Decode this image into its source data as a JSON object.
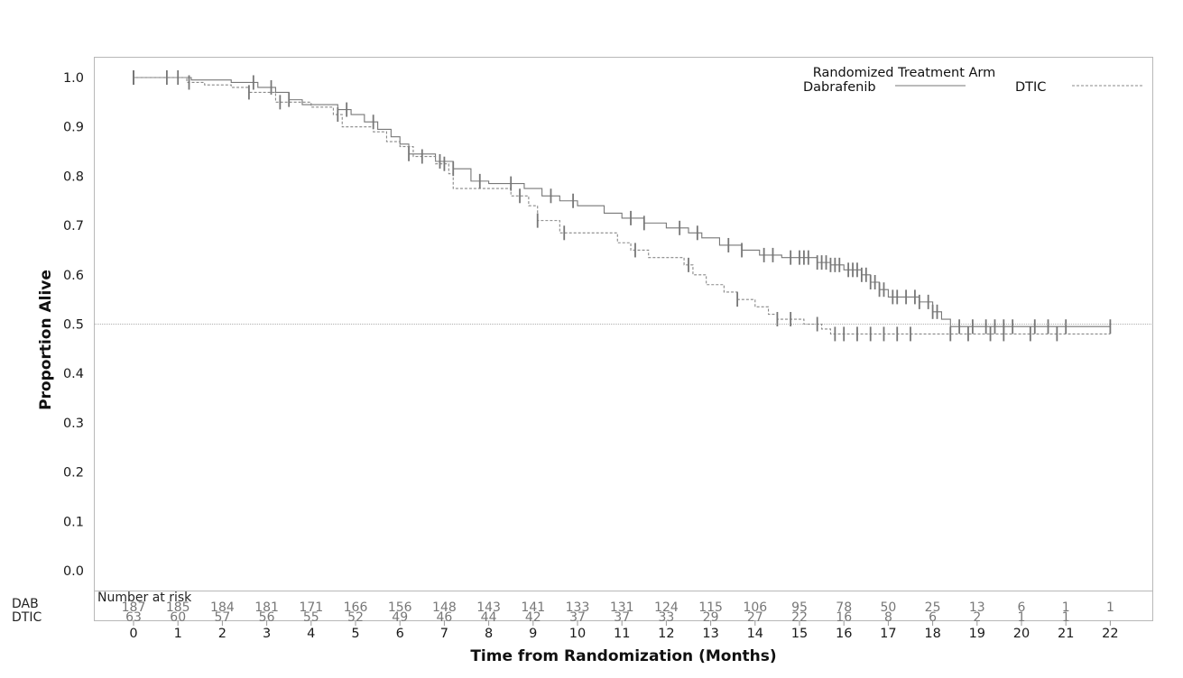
{
  "chart_data": {
    "type": "line",
    "subtype": "kaplan-meier",
    "title": "",
    "xlabel": "Time from Randomization (Months)",
    "ylabel": "Proportion Alive",
    "xlim": [
      0,
      22
    ],
    "ylim": [
      0.0,
      1.0
    ],
    "x_ticks": [
      "0",
      "1",
      "2",
      "3",
      "4",
      "5",
      "6",
      "7",
      "8",
      "9",
      "10",
      "11",
      "12",
      "13",
      "14",
      "15",
      "16",
      "17",
      "18",
      "19",
      "20",
      "21",
      "22"
    ],
    "y_ticks": [
      "0.0",
      "0.1",
      "0.2",
      "0.3",
      "0.4",
      "0.5",
      "0.6",
      "0.7",
      "0.8",
      "0.9",
      "1.0"
    ],
    "reference_line": 0.5,
    "legend": {
      "title": "Randomized Treatment Arm",
      "position": "top-right",
      "entries": [
        "Dabrafenib",
        "DTIC"
      ]
    },
    "series": [
      {
        "name": "Dabrafenib",
        "line_style": "solid",
        "steps": [
          [
            0,
            1.0
          ],
          [
            1.3,
            0.995
          ],
          [
            2.2,
            0.99
          ],
          [
            2.8,
            0.98
          ],
          [
            3.2,
            0.97
          ],
          [
            3.5,
            0.955
          ],
          [
            3.8,
            0.945
          ],
          [
            4.6,
            0.935
          ],
          [
            4.9,
            0.925
          ],
          [
            5.2,
            0.91
          ],
          [
            5.5,
            0.895
          ],
          [
            5.8,
            0.88
          ],
          [
            6,
            0.865
          ],
          [
            6.2,
            0.845
          ],
          [
            6.8,
            0.83
          ],
          [
            7.2,
            0.815
          ],
          [
            7.6,
            0.79
          ],
          [
            8,
            0.785
          ],
          [
            8.8,
            0.775
          ],
          [
            9.2,
            0.76
          ],
          [
            9.6,
            0.75
          ],
          [
            10,
            0.74
          ],
          [
            10.6,
            0.725
          ],
          [
            11,
            0.715
          ],
          [
            11.5,
            0.705
          ],
          [
            12,
            0.695
          ],
          [
            12.5,
            0.685
          ],
          [
            12.8,
            0.675
          ],
          [
            13.2,
            0.66
          ],
          [
            13.7,
            0.65
          ],
          [
            14.1,
            0.64
          ],
          [
            14.6,
            0.635
          ],
          [
            15.4,
            0.625
          ],
          [
            15.7,
            0.62
          ],
          [
            16,
            0.61
          ],
          [
            16.4,
            0.6
          ],
          [
            16.6,
            0.585
          ],
          [
            16.8,
            0.57
          ],
          [
            17,
            0.555
          ],
          [
            17.7,
            0.545
          ],
          [
            18,
            0.525
          ],
          [
            18.2,
            0.51
          ],
          [
            18.4,
            0.495
          ],
          [
            22,
            0.495
          ]
        ],
        "censor_times": [
          0,
          0,
          0.75,
          1,
          2.7,
          3.1,
          3.5,
          4.8,
          5.4,
          6.2,
          6.9,
          7.2,
          7.8,
          8.5,
          9.4,
          9.9,
          11.2,
          11.5,
          12.3,
          12.7,
          13.4,
          13.7,
          14.2,
          14.4,
          14.8,
          15,
          15.1,
          15.2,
          15.4,
          15.5,
          15.6,
          15.7,
          15.8,
          15.9,
          16.1,
          16.2,
          16.3,
          16.4,
          16.5,
          16.6,
          16.7,
          16.8,
          16.9,
          17.1,
          17.2,
          17.4,
          17.6,
          17.7,
          17.9,
          18,
          18.1,
          18.6,
          18.9,
          19.2,
          19.4,
          19.6,
          19.8,
          20.3,
          20.6,
          21,
          22
        ]
      },
      {
        "name": "DTIC",
        "line_style": "dashed",
        "steps": [
          [
            0,
            1.0
          ],
          [
            1.2,
            0.99
          ],
          [
            1.6,
            0.985
          ],
          [
            2.2,
            0.98
          ],
          [
            2.6,
            0.97
          ],
          [
            3.2,
            0.95
          ],
          [
            4,
            0.94
          ],
          [
            4.5,
            0.925
          ],
          [
            4.7,
            0.9
          ],
          [
            5.4,
            0.89
          ],
          [
            5.7,
            0.87
          ],
          [
            6,
            0.86
          ],
          [
            6.3,
            0.84
          ],
          [
            6.8,
            0.825
          ],
          [
            7.1,
            0.805
          ],
          [
            7.2,
            0.775
          ],
          [
            8.5,
            0.76
          ],
          [
            8.9,
            0.74
          ],
          [
            9.1,
            0.71
          ],
          [
            9.6,
            0.685
          ],
          [
            10.9,
            0.665
          ],
          [
            11.2,
            0.65
          ],
          [
            11.6,
            0.635
          ],
          [
            12.4,
            0.62
          ],
          [
            12.6,
            0.6
          ],
          [
            12.9,
            0.58
          ],
          [
            13.3,
            0.565
          ],
          [
            13.6,
            0.55
          ],
          [
            14,
            0.535
          ],
          [
            14.3,
            0.52
          ],
          [
            14.5,
            0.51
          ],
          [
            15.1,
            0.5
          ],
          [
            15.5,
            0.49
          ],
          [
            15.7,
            0.48
          ],
          [
            22,
            0.48
          ]
        ],
        "censor_times": [
          0,
          1.25,
          2.6,
          3.3,
          4.6,
          6.5,
          7,
          8.7,
          9.1,
          9.7,
          11.3,
          12.5,
          13.6,
          14.5,
          14.8,
          15.4,
          15.8,
          16,
          16.3,
          16.6,
          16.9,
          17.2,
          17.5,
          18.4,
          18.8,
          19.3,
          19.6,
          20.2,
          20.8
        ]
      }
    ],
    "risk_table": {
      "header": "Number at risk",
      "rows": [
        {
          "label": "DAB",
          "values": [
            "187",
            "185",
            "184",
            "181",
            "171",
            "166",
            "156",
            "148",
            "143",
            "141",
            "133",
            "131",
            "124",
            "115",
            "106",
            "95",
            "78",
            "50",
            "25",
            "13",
            "6",
            "1",
            "1"
          ]
        },
        {
          "label": "DTIC",
          "values": [
            "63",
            "60",
            "57",
            "56",
            "55",
            "52",
            "49",
            "46",
            "44",
            "42",
            "37",
            "37",
            "33",
            "29",
            "27",
            "22",
            "16",
            "8",
            "6",
            "2",
            "1",
            "1",
            ""
          ]
        }
      ]
    }
  }
}
